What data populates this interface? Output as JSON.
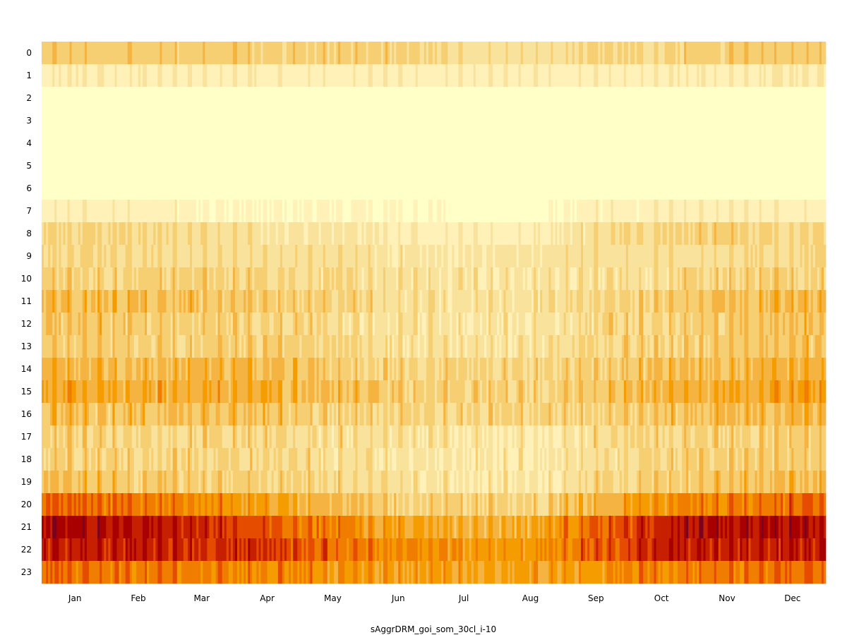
{
  "chart_data": {
    "type": "heatmap",
    "title": "",
    "xlabel": "sAggrDRM_goi_som_30cl_i-10",
    "ylabel": "",
    "x_tick_labels": [
      "Jan",
      "Feb",
      "Mar",
      "Apr",
      "May",
      "Jun",
      "Jul",
      "Aug",
      "Sep",
      "Oct",
      "Nov",
      "Dec"
    ],
    "y_tick_labels": [
      "0",
      "1",
      "2",
      "3",
      "4",
      "5",
      "6",
      "7",
      "8",
      "9",
      "10",
      "11",
      "12",
      "13",
      "14",
      "15",
      "16",
      "17",
      "18",
      "19",
      "20",
      "21",
      "22",
      "23"
    ],
    "days": 365,
    "hours": 24,
    "colormap": "YlOrRd",
    "color_stops": [
      "#ffffc8",
      "#fff1b8",
      "#f9e29b",
      "#f7cf73",
      "#f5b441",
      "#f59c00",
      "#f07d00",
      "#e64c00",
      "#c62000",
      "#a80000",
      "#7a0020"
    ],
    "grid": false,
    "colorbar": false,
    "hourly_mean_by_month": [
      [
        3.0,
        2.9,
        2.9,
        2.8,
        2.7,
        2.7,
        1.9,
        1.9,
        2.4,
        2.6,
        2.8,
        3.0
      ],
      [
        1.2,
        1.1,
        1.1,
        1.1,
        1.0,
        1.0,
        1.0,
        1.0,
        1.0,
        1.1,
        1.2,
        1.4
      ],
      [
        0.1,
        0.1,
        0.1,
        0.1,
        0.1,
        0.1,
        0.0,
        0.0,
        0.0,
        0.0,
        0.0,
        0.1
      ],
      [
        0.0,
        0.0,
        0.0,
        0.0,
        0.0,
        0.0,
        0.0,
        0.0,
        0.0,
        0.0,
        0.0,
        0.0
      ],
      [
        0.0,
        0.0,
        0.0,
        0.0,
        0.0,
        0.0,
        0.0,
        0.0,
        0.0,
        0.0,
        0.0,
        0.0
      ],
      [
        0.0,
        0.0,
        0.0,
        0.0,
        0.0,
        0.0,
        0.0,
        0.0,
        0.0,
        0.0,
        0.0,
        0.0
      ],
      [
        0.0,
        0.0,
        0.0,
        0.0,
        0.0,
        0.0,
        0.0,
        0.0,
        0.0,
        0.0,
        0.0,
        0.0
      ],
      [
        1.0,
        0.9,
        0.7,
        0.3,
        0.5,
        0.4,
        0.1,
        0.1,
        0.7,
        0.9,
        1.0,
        0.9
      ],
      [
        2.6,
        2.5,
        2.3,
        1.6,
        1.6,
        1.3,
        0.9,
        1.0,
        2.0,
        2.5,
        2.7,
        2.4
      ],
      [
        2.3,
        2.2,
        2.1,
        2.0,
        2.0,
        1.7,
        1.6,
        1.6,
        1.9,
        2.1,
        2.2,
        2.3
      ],
      [
        2.6,
        2.5,
        2.4,
        2.4,
        2.0,
        1.6,
        1.5,
        1.5,
        1.8,
        2.0,
        2.4,
        2.8
      ],
      [
        3.3,
        3.2,
        3.1,
        2.8,
        2.4,
        1.9,
        1.8,
        1.8,
        2.3,
        2.8,
        3.2,
        3.6
      ],
      [
        3.0,
        2.9,
        2.8,
        2.6,
        2.2,
        1.7,
        1.6,
        1.6,
        2.1,
        2.6,
        2.9,
        3.3
      ],
      [
        2.8,
        2.7,
        2.8,
        2.6,
        2.3,
        1.9,
        1.8,
        1.8,
        2.2,
        2.6,
        2.9,
        3.2
      ],
      [
        3.7,
        3.5,
        3.6,
        3.4,
        2.9,
        2.4,
        2.2,
        2.2,
        2.7,
        3.3,
        3.6,
        4.0
      ],
      [
        4.2,
        4.0,
        4.1,
        3.9,
        3.3,
        2.9,
        2.6,
        2.6,
        3.1,
        3.7,
        4.1,
        4.5
      ],
      [
        3.2,
        3.1,
        3.2,
        3.2,
        2.7,
        2.4,
        2.2,
        2.2,
        2.6,
        3.0,
        3.3,
        3.7
      ],
      [
        2.6,
        2.4,
        2.3,
        2.3,
        2.1,
        1.6,
        1.3,
        1.4,
        2.0,
        2.4,
        2.6,
        2.8
      ],
      [
        2.7,
        2.5,
        2.3,
        2.2,
        2.0,
        1.6,
        1.1,
        1.2,
        1.9,
        2.4,
        2.7,
        2.9
      ],
      [
        3.2,
        2.9,
        2.7,
        2.5,
        2.1,
        1.8,
        1.3,
        1.3,
        2.1,
        2.8,
        3.2,
        3.4
      ],
      [
        6.2,
        5.8,
        5.2,
        4.4,
        3.6,
        2.8,
        2.5,
        2.5,
        3.8,
        5.0,
        5.8,
        6.1
      ],
      [
        8.6,
        8.3,
        7.7,
        6.6,
        5.6,
        4.5,
        3.8,
        4.0,
        6.2,
        7.9,
        8.6,
        8.6
      ],
      [
        8.0,
        8.0,
        7.6,
        7.4,
        6.1,
        5.4,
        4.8,
        5.0,
        6.4,
        7.8,
        8.0,
        8.0
      ],
      [
        6.1,
        5.8,
        5.6,
        5.4,
        4.9,
        4.6,
        4.3,
        4.4,
        4.8,
        5.5,
        5.9,
        6.1
      ]
    ]
  }
}
